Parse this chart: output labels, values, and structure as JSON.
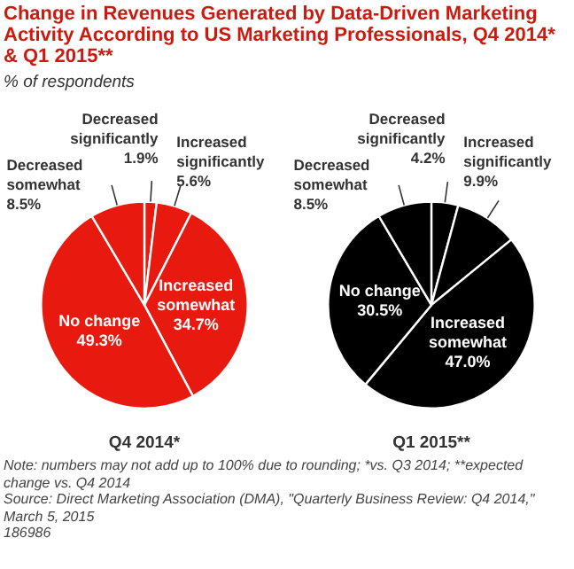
{
  "chart_data": [
    {
      "type": "pie",
      "title": "Change in Revenues Generated by Data-Driven Marketing Activity According to US Marketing Professionals, Q4 2014* & Q1 2015**",
      "subtitle": "% of respondents",
      "xlabel": "Q4 2014*",
      "categories": [
        "Decreased\nsignificantly",
        "Increased\nsignificantly",
        "Increased\nsomewhat",
        "No change",
        "Decreased\nsomewhat"
      ],
      "values": [
        1.9,
        5.6,
        34.7,
        49.3,
        8.5
      ],
      "value_labels": [
        "1.9%",
        "5.6%",
        "34.7%",
        "49.3%",
        "8.5%"
      ],
      "colors": [
        "#e8190f",
        "#e8190f",
        "#e8190f",
        "#e8190f",
        "#e8190f"
      ]
    },
    {
      "type": "pie",
      "xlabel": "Q1 2015**",
      "categories": [
        "Decreased\nsignificantly",
        "Increased\nsignificantly",
        "Increased\nsomewhat",
        "No change",
        "Decreased\nsomewhat"
      ],
      "values": [
        4.2,
        9.9,
        47.0,
        30.5,
        8.5
      ],
      "value_labels": [
        "4.2%",
        "9.9%",
        "47.0%",
        "30.5%",
        "8.5%"
      ],
      "colors": [
        "#000000",
        "#000000",
        "#000000",
        "#000000",
        "#000000"
      ],
      "annotations": [
        "Note: numbers may not add up to 100% due to rounding; *vs. Q3 2014; **expected change vs. Q4 2014",
        "Source: Direct Marketing Association (DMA), \"Quarterly Business Review: Q4 2014,\" March 5, 2015",
        "186986"
      ]
    }
  ]
}
